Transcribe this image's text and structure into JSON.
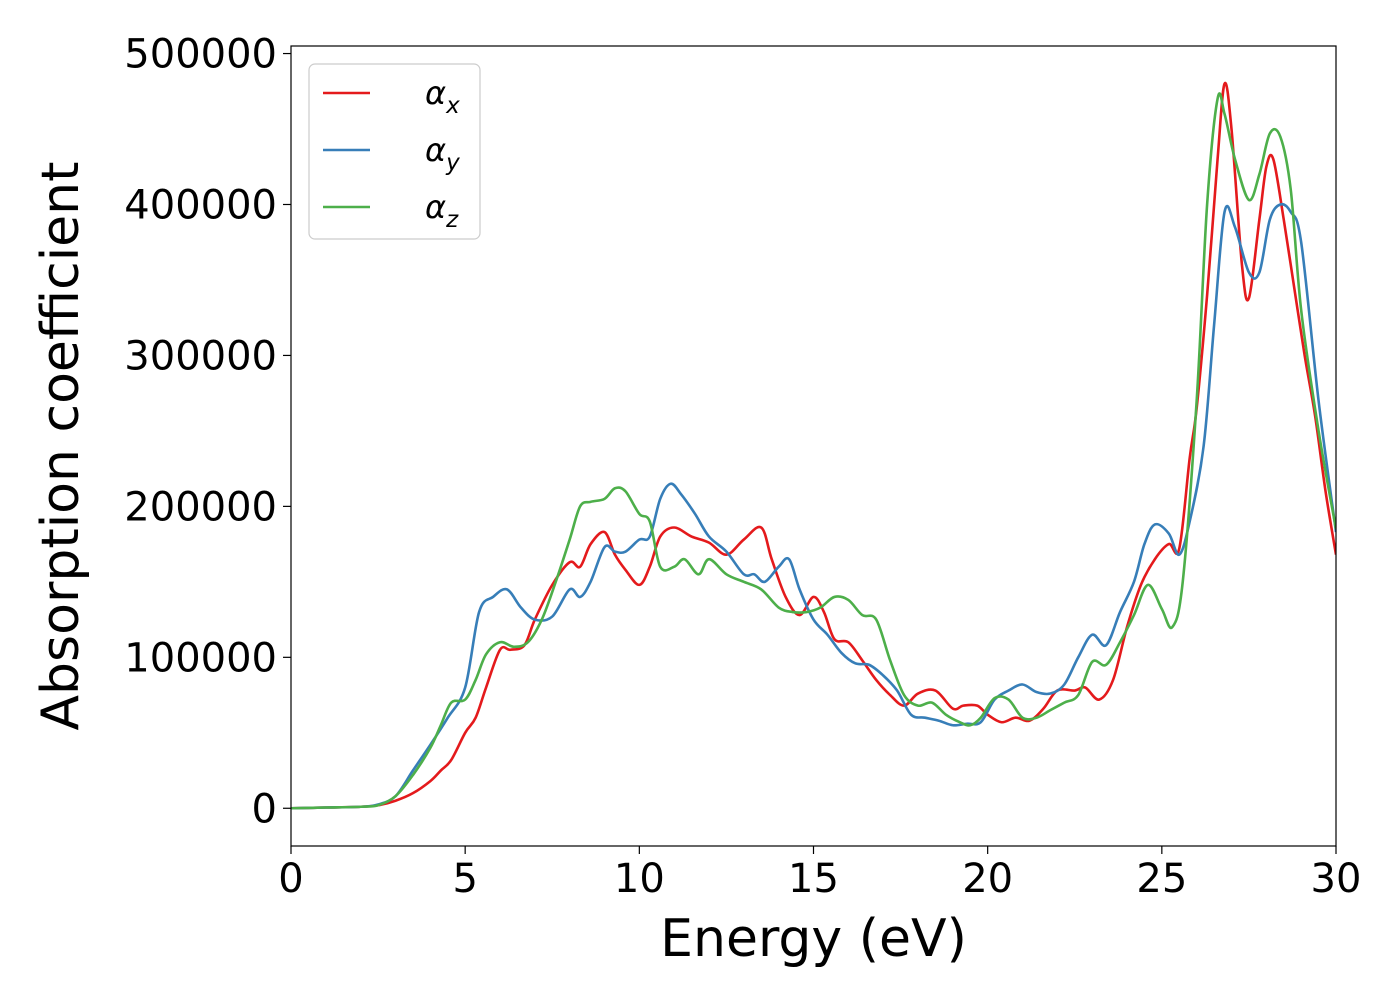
{
  "chart_data": {
    "type": "line",
    "title": "",
    "xlabel": "Energy (eV)",
    "ylabel": "Absorption coefficient",
    "xlim": [
      0,
      30
    ],
    "ylim": [
      -25000,
      505000
    ],
    "xticks": [
      0,
      5,
      10,
      15,
      20,
      25,
      30
    ],
    "yticks": [
      0,
      100000,
      200000,
      300000,
      400000,
      500000
    ],
    "grid": false,
    "legend": "top-left",
    "colors": {
      "alpha_x": "#e41a1c",
      "alpha_y": "#377eb8",
      "alpha_z": "#4daf4a"
    },
    "series": [
      {
        "name": "αx",
        "legend_main": "α",
        "legend_sub": "x",
        "color": "#e41a1c",
        "x": [
          0,
          1,
          2,
          2.5,
          3,
          3.5,
          4,
          4.3,
          4.6,
          5,
          5.3,
          5.6,
          6,
          6.3,
          6.7,
          7,
          7.5,
          8,
          8.3,
          8.6,
          9,
          9.3,
          9.6,
          10,
          10.3,
          10.6,
          11,
          11.5,
          12,
          12.5,
          13,
          13.5,
          13.8,
          14.2,
          14.6,
          15,
          15.3,
          15.6,
          16,
          16.4,
          16.8,
          17.2,
          17.6,
          18,
          18.5,
          19,
          19.3,
          19.7,
          20,
          20.4,
          20.8,
          21.2,
          21.6,
          22,
          22.5,
          22.8,
          23.2,
          23.6,
          24,
          24.4,
          24.8,
          25.2,
          25.5,
          25.8,
          26,
          26.3,
          26.6,
          26.8,
          27,
          27.3,
          27.5,
          27.8,
          28,
          28.2,
          28.5,
          28.8,
          29.1,
          29.4,
          29.7,
          30
        ],
        "y": [
          0,
          500,
          1000,
          2000,
          5000,
          10000,
          18000,
          25000,
          32000,
          50000,
          60000,
          80000,
          105000,
          105000,
          108000,
          125000,
          148000,
          163000,
          160000,
          175000,
          183000,
          168000,
          158000,
          148000,
          160000,
          180000,
          186000,
          180000,
          176000,
          168000,
          178000,
          186000,
          165000,
          140000,
          128000,
          140000,
          130000,
          112000,
          110000,
          98000,
          85000,
          75000,
          68000,
          76000,
          78000,
          66000,
          68000,
          68000,
          62000,
          57000,
          60000,
          58000,
          66000,
          78000,
          78000,
          80000,
          72000,
          85000,
          120000,
          148000,
          165000,
          175000,
          172000,
          232000,
          265000,
          340000,
          430000,
          480000,
          450000,
          360000,
          338000,
          390000,
          425000,
          430000,
          390000,
          345000,
          300000,
          260000,
          210000,
          168000
        ]
      },
      {
        "name": "αy",
        "legend_main": "α",
        "legend_sub": "y",
        "color": "#377eb8",
        "x": [
          0,
          1,
          2,
          2.5,
          3,
          3.5,
          4,
          4.5,
          5,
          5.4,
          5.8,
          6.2,
          6.6,
          7,
          7.5,
          8,
          8.3,
          8.6,
          9,
          9.3,
          9.6,
          10,
          10.3,
          10.6,
          10.9,
          11.2,
          11.6,
          12,
          12.5,
          13,
          13.3,
          13.6,
          14,
          14.3,
          14.6,
          15,
          15.4,
          15.8,
          16.2,
          16.6,
          17,
          17.4,
          17.8,
          18.2,
          18.6,
          19,
          19.4,
          19.8,
          20.2,
          20.6,
          21,
          21.4,
          21.8,
          22.2,
          22.6,
          23,
          23.4,
          23.8,
          24.2,
          24.5,
          24.8,
          25.2,
          25.5,
          25.8,
          26.2,
          26.5,
          26.8,
          27.1,
          27.5,
          27.8,
          28.1,
          28.4,
          28.7,
          29,
          29.5,
          30
        ],
        "y": [
          0,
          500,
          1000,
          2500,
          8000,
          25000,
          42000,
          60000,
          80000,
          130000,
          140000,
          145000,
          133000,
          125000,
          127000,
          145000,
          140000,
          150000,
          173000,
          170000,
          170000,
          178000,
          180000,
          205000,
          215000,
          208000,
          195000,
          180000,
          170000,
          155000,
          155000,
          150000,
          160000,
          165000,
          145000,
          125000,
          115000,
          103000,
          96000,
          95000,
          88000,
          78000,
          62000,
          60000,
          58000,
          55000,
          56000,
          57000,
          72000,
          78000,
          82000,
          77000,
          76000,
          82000,
          100000,
          115000,
          108000,
          130000,
          150000,
          175000,
          188000,
          182000,
          168000,
          190000,
          240000,
          320000,
          395000,
          385000,
          355000,
          355000,
          390000,
          400000,
          395000,
          375000,
          270000,
          183000
        ]
      },
      {
        "name": "αz",
        "legend_main": "α",
        "legend_sub": "z",
        "color": "#4daf4a",
        "x": [
          0,
          1,
          2,
          2.5,
          3,
          3.5,
          4,
          4.3,
          4.6,
          5,
          5.3,
          5.6,
          6,
          6.4,
          6.8,
          7.2,
          7.6,
          8,
          8.3,
          8.6,
          9,
          9.3,
          9.6,
          10,
          10.3,
          10.6,
          11,
          11.3,
          11.7,
          12,
          12.5,
          13,
          13.5,
          14,
          14.4,
          14.8,
          15.2,
          15.6,
          16,
          16.4,
          16.8,
          17.2,
          17.6,
          18,
          18.4,
          18.8,
          19.2,
          19.5,
          19.8,
          20.2,
          20.6,
          21,
          21.4,
          21.8,
          22.2,
          22.6,
          23,
          23.4,
          23.8,
          24.2,
          24.6,
          25,
          25.3,
          25.6,
          26,
          26.3,
          26.6,
          26.8,
          27.1,
          27.5,
          27.8,
          28.1,
          28.4,
          28.7,
          29,
          29.5,
          30
        ],
        "y": [
          0,
          500,
          1000,
          2000,
          8000,
          22000,
          40000,
          55000,
          70000,
          72000,
          85000,
          102000,
          110000,
          107000,
          110000,
          125000,
          150000,
          178000,
          200000,
          203000,
          205000,
          212000,
          210000,
          195000,
          190000,
          160000,
          160000,
          165000,
          155000,
          165000,
          155000,
          150000,
          145000,
          133000,
          130000,
          130000,
          133000,
          140000,
          138000,
          128000,
          125000,
          98000,
          75000,
          68000,
          70000,
          62000,
          57000,
          55000,
          60000,
          73000,
          72000,
          60000,
          60000,
          65000,
          70000,
          75000,
          97000,
          95000,
          110000,
          128000,
          148000,
          132000,
          120000,
          150000,
          270000,
          400000,
          470000,
          460000,
          430000,
          403000,
          420000,
          447000,
          445000,
          410000,
          330000,
          250000,
          185000
        ]
      }
    ]
  }
}
